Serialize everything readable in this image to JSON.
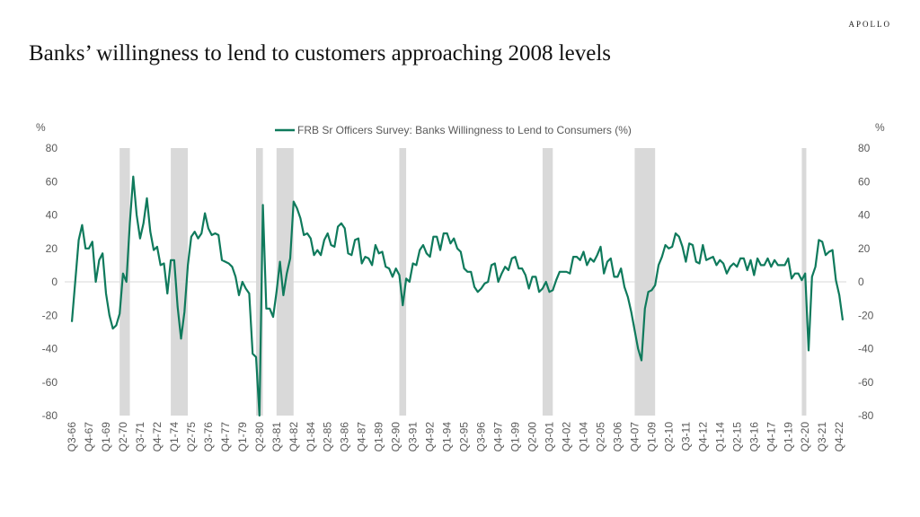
{
  "brand": "APOLLO",
  "title": "Banks’ willingness to lend to customers approaching 2008 levels",
  "chart_data": {
    "type": "line",
    "legend": "FRB Sr Officers Survey: Banks Willingness to Lend to Consumers (%)",
    "legend_position": "top-center",
    "y_unit_left": "%",
    "y_unit_right": "%",
    "ylim": [
      -80,
      80
    ],
    "yticks": [
      80,
      60,
      40,
      20,
      0,
      -20,
      -40,
      -60,
      -80
    ],
    "grid": false,
    "zero_line": true,
    "color": "#0f7a5c",
    "recession_color": "#d9d9d9",
    "x_start": "Q3-66",
    "x_end": "Q1-23",
    "xtick_labels": [
      "Q3-66",
      "Q4-67",
      "Q1-69",
      "Q2-70",
      "Q3-71",
      "Q4-72",
      "Q1-74",
      "Q2-75",
      "Q3-76",
      "Q4-77",
      "Q1-79",
      "Q2-80",
      "Q3-81",
      "Q4-82",
      "Q1-84",
      "Q2-85",
      "Q3-86",
      "Q4-87",
      "Q1-89",
      "Q2-90",
      "Q3-91",
      "Q4-92",
      "Q1-94",
      "Q2-95",
      "Q3-96",
      "Q4-97",
      "Q1-99",
      "Q2-00",
      "Q3-01",
      "Q4-02",
      "Q1-04",
      "Q2-05",
      "Q3-06",
      "Q4-07",
      "Q1-09",
      "Q2-10",
      "Q3-11",
      "Q4-12",
      "Q1-14",
      "Q2-15",
      "Q3-16",
      "Q4-17",
      "Q1-19",
      "Q2-20",
      "Q3-21",
      "Q4-22"
    ],
    "recessions": [
      [
        "Q1-70",
        "Q4-70"
      ],
      [
        "Q4-73",
        "Q1-75"
      ],
      [
        "Q1-80",
        "Q3-80"
      ],
      [
        "Q3-81",
        "Q4-82"
      ],
      [
        "Q3-90",
        "Q1-91"
      ],
      [
        "Q1-01",
        "Q4-01"
      ],
      [
        "Q4-07",
        "Q2-09"
      ],
      [
        "Q1-20",
        "Q2-20"
      ]
    ],
    "series": [
      {
        "name": "FRB Sr Officers Survey: Banks Willingness to Lend to Consumers (%)",
        "points": [
          [
            "Q3-66",
            -24
          ],
          [
            "Q1-67",
            25
          ],
          [
            "Q2-67",
            34
          ],
          [
            "Q3-67",
            20
          ],
          [
            "Q4-67",
            20
          ],
          [
            "Q1-68",
            24
          ],
          [
            "Q2-68",
            0
          ],
          [
            "Q3-68",
            13
          ],
          [
            "Q4-68",
            17
          ],
          [
            "Q1-69",
            -7
          ],
          [
            "Q2-69",
            -20
          ],
          [
            "Q3-69",
            -28
          ],
          [
            "Q4-69",
            -26
          ],
          [
            "Q1-70",
            -19
          ],
          [
            "Q2-70",
            5
          ],
          [
            "Q3-70",
            0
          ],
          [
            "Q4-70",
            35
          ],
          [
            "Q1-71",
            63
          ],
          [
            "Q2-71",
            40
          ],
          [
            "Q3-71",
            26
          ],
          [
            "Q4-71",
            35
          ],
          [
            "Q1-72",
            50
          ],
          [
            "Q2-72",
            30
          ],
          [
            "Q3-72",
            19
          ],
          [
            "Q4-72",
            21
          ],
          [
            "Q1-73",
            10
          ],
          [
            "Q2-73",
            11
          ],
          [
            "Q3-73",
            -7
          ],
          [
            "Q4-73",
            13
          ],
          [
            "Q1-74",
            13
          ],
          [
            "Q2-74",
            -15
          ],
          [
            "Q3-74",
            -34
          ],
          [
            "Q4-74",
            -18
          ],
          [
            "Q1-75",
            10
          ],
          [
            "Q2-75",
            27
          ],
          [
            "Q3-75",
            30
          ],
          [
            "Q4-75",
            26
          ],
          [
            "Q1-76",
            29
          ],
          [
            "Q2-76",
            41
          ],
          [
            "Q3-76",
            32
          ],
          [
            "Q4-76",
            28
          ],
          [
            "Q1-77",
            29
          ],
          [
            "Q2-77",
            28
          ],
          [
            "Q3-77",
            13
          ],
          [
            "Q4-77",
            12
          ],
          [
            "Q1-78",
            11
          ],
          [
            "Q2-78",
            9
          ],
          [
            "Q3-78",
            3
          ],
          [
            "Q4-78",
            -8
          ],
          [
            "Q1-79",
            0
          ],
          [
            "Q2-79",
            -4
          ],
          [
            "Q3-79",
            -7
          ],
          [
            "Q4-79",
            -43
          ],
          [
            "Q1-80",
            -45
          ],
          [
            "Q2-80",
            -80
          ],
          [
            "Q3-80",
            46
          ],
          [
            "Q4-80",
            -16
          ],
          [
            "Q1-81",
            -16
          ],
          [
            "Q2-81",
            -21
          ],
          [
            "Q3-81",
            -6
          ],
          [
            "Q4-81",
            12
          ],
          [
            "Q1-82",
            -8
          ],
          [
            "Q2-82",
            5
          ],
          [
            "Q3-82",
            14
          ],
          [
            "Q4-82",
            48
          ],
          [
            "Q1-83",
            44
          ],
          [
            "Q2-83",
            38
          ],
          [
            "Q3-83",
            28
          ],
          [
            "Q4-83",
            29
          ],
          [
            "Q1-84",
            26
          ],
          [
            "Q2-84",
            16
          ],
          [
            "Q3-84",
            19
          ],
          [
            "Q4-84",
            16
          ],
          [
            "Q1-85",
            25
          ],
          [
            "Q2-85",
            29
          ],
          [
            "Q3-85",
            22
          ],
          [
            "Q4-85",
            21
          ],
          [
            "Q1-86",
            33
          ],
          [
            "Q2-86",
            35
          ],
          [
            "Q3-86",
            32
          ],
          [
            "Q4-86",
            17
          ],
          [
            "Q1-87",
            16
          ],
          [
            "Q2-87",
            25
          ],
          [
            "Q3-87",
            26
          ],
          [
            "Q4-87",
            11
          ],
          [
            "Q1-88",
            15
          ],
          [
            "Q2-88",
            14
          ],
          [
            "Q3-88",
            10
          ],
          [
            "Q4-88",
            22
          ],
          [
            "Q1-89",
            17
          ],
          [
            "Q2-89",
            18
          ],
          [
            "Q3-89",
            9
          ],
          [
            "Q4-89",
            8
          ],
          [
            "Q1-90",
            3
          ],
          [
            "Q2-90",
            8
          ],
          [
            "Q3-90",
            4
          ],
          [
            "Q4-90",
            -14
          ],
          [
            "Q1-91",
            2
          ],
          [
            "Q2-91",
            0
          ],
          [
            "Q3-91",
            11
          ],
          [
            "Q4-91",
            10
          ],
          [
            "Q1-92",
            19
          ],
          [
            "Q2-92",
            22
          ],
          [
            "Q3-92",
            17
          ],
          [
            "Q4-92",
            15
          ],
          [
            "Q1-93",
            27
          ],
          [
            "Q2-93",
            27
          ],
          [
            "Q3-93",
            19
          ],
          [
            "Q4-93",
            29
          ],
          [
            "Q1-94",
            29
          ],
          [
            "Q2-94",
            23
          ],
          [
            "Q3-94",
            26
          ],
          [
            "Q4-94",
            20
          ],
          [
            "Q1-95",
            18
          ],
          [
            "Q2-95",
            8
          ],
          [
            "Q3-95",
            6
          ],
          [
            "Q4-95",
            6
          ],
          [
            "Q1-96",
            -3
          ],
          [
            "Q2-96",
            -6
          ],
          [
            "Q3-96",
            -4
          ],
          [
            "Q4-96",
            -1
          ],
          [
            "Q1-97",
            0
          ],
          [
            "Q2-97",
            10
          ],
          [
            "Q3-97",
            11
          ],
          [
            "Q4-97",
            0
          ],
          [
            "Q1-98",
            5
          ],
          [
            "Q2-98",
            9
          ],
          [
            "Q3-98",
            7
          ],
          [
            "Q4-98",
            14
          ],
          [
            "Q1-99",
            15
          ],
          [
            "Q2-99",
            8
          ],
          [
            "Q3-99",
            8
          ],
          [
            "Q4-99",
            4
          ],
          [
            "Q1-00",
            -4
          ],
          [
            "Q2-00",
            3
          ],
          [
            "Q3-00",
            3
          ],
          [
            "Q4-00",
            -6
          ],
          [
            "Q1-01",
            -4
          ],
          [
            "Q2-01",
            0
          ],
          [
            "Q3-01",
            -6
          ],
          [
            "Q4-01",
            -5
          ],
          [
            "Q1-02",
            1
          ],
          [
            "Q2-02",
            6
          ],
          [
            "Q3-02",
            6
          ],
          [
            "Q4-02",
            6
          ],
          [
            "Q1-03",
            5
          ],
          [
            "Q2-03",
            15
          ],
          [
            "Q3-03",
            15
          ],
          [
            "Q4-03",
            13
          ],
          [
            "Q1-04",
            18
          ],
          [
            "Q2-04",
            10
          ],
          [
            "Q3-04",
            14
          ],
          [
            "Q4-04",
            12
          ],
          [
            "Q1-05",
            16
          ],
          [
            "Q2-05",
            21
          ],
          [
            "Q3-05",
            5
          ],
          [
            "Q4-05",
            12
          ],
          [
            "Q1-06",
            14
          ],
          [
            "Q2-06",
            3
          ],
          [
            "Q3-06",
            3
          ],
          [
            "Q4-06",
            8
          ],
          [
            "Q1-07",
            -3
          ],
          [
            "Q2-07",
            -9
          ],
          [
            "Q3-07",
            -18
          ],
          [
            "Q4-07",
            -29
          ],
          [
            "Q1-08",
            -40
          ],
          [
            "Q2-08",
            -47
          ],
          [
            "Q3-08",
            -16
          ],
          [
            "Q4-08",
            -6
          ],
          [
            "Q1-09",
            -5
          ],
          [
            "Q2-09",
            -2
          ],
          [
            "Q3-09",
            10
          ],
          [
            "Q4-09",
            15
          ],
          [
            "Q1-10",
            22
          ],
          [
            "Q2-10",
            20
          ],
          [
            "Q3-10",
            21
          ],
          [
            "Q4-10",
            29
          ],
          [
            "Q1-11",
            27
          ],
          [
            "Q2-11",
            21
          ],
          [
            "Q3-11",
            12
          ],
          [
            "Q4-11",
            23
          ],
          [
            "Q1-12",
            22
          ],
          [
            "Q2-12",
            12
          ],
          [
            "Q3-12",
            11
          ],
          [
            "Q4-12",
            22
          ],
          [
            "Q1-13",
            13
          ],
          [
            "Q2-13",
            14
          ],
          [
            "Q3-13",
            15
          ],
          [
            "Q4-13",
            10
          ],
          [
            "Q1-14",
            13
          ],
          [
            "Q2-14",
            11
          ],
          [
            "Q3-14",
            5
          ],
          [
            "Q4-14",
            9
          ],
          [
            "Q1-15",
            11
          ],
          [
            "Q2-15",
            9
          ],
          [
            "Q3-15",
            14
          ],
          [
            "Q4-15",
            14
          ],
          [
            "Q1-16",
            7
          ],
          [
            "Q2-16",
            13
          ],
          [
            "Q3-16",
            4
          ],
          [
            "Q4-16",
            14
          ],
          [
            "Q1-17",
            10
          ],
          [
            "Q2-17",
            10
          ],
          [
            "Q3-17",
            14
          ],
          [
            "Q4-17",
            9
          ],
          [
            "Q1-18",
            13
          ],
          [
            "Q2-18",
            10
          ],
          [
            "Q3-18",
            10
          ],
          [
            "Q4-18",
            10
          ],
          [
            "Q1-19",
            14
          ],
          [
            "Q2-19",
            2
          ],
          [
            "Q3-19",
            5
          ],
          [
            "Q4-19",
            5
          ],
          [
            "Q1-20",
            1
          ],
          [
            "Q2-20",
            5
          ],
          [
            "Q3-20",
            -41
          ],
          [
            "Q4-20",
            3
          ],
          [
            "Q1-21",
            9
          ],
          [
            "Q2-21",
            25
          ],
          [
            "Q3-21",
            24
          ],
          [
            "Q4-21",
            16
          ],
          [
            "Q1-22",
            18
          ],
          [
            "Q2-22",
            19
          ],
          [
            "Q3-22",
            1
          ],
          [
            "Q4-22",
            -8
          ],
          [
            "Q1-23",
            -23
          ]
        ]
      }
    ]
  }
}
